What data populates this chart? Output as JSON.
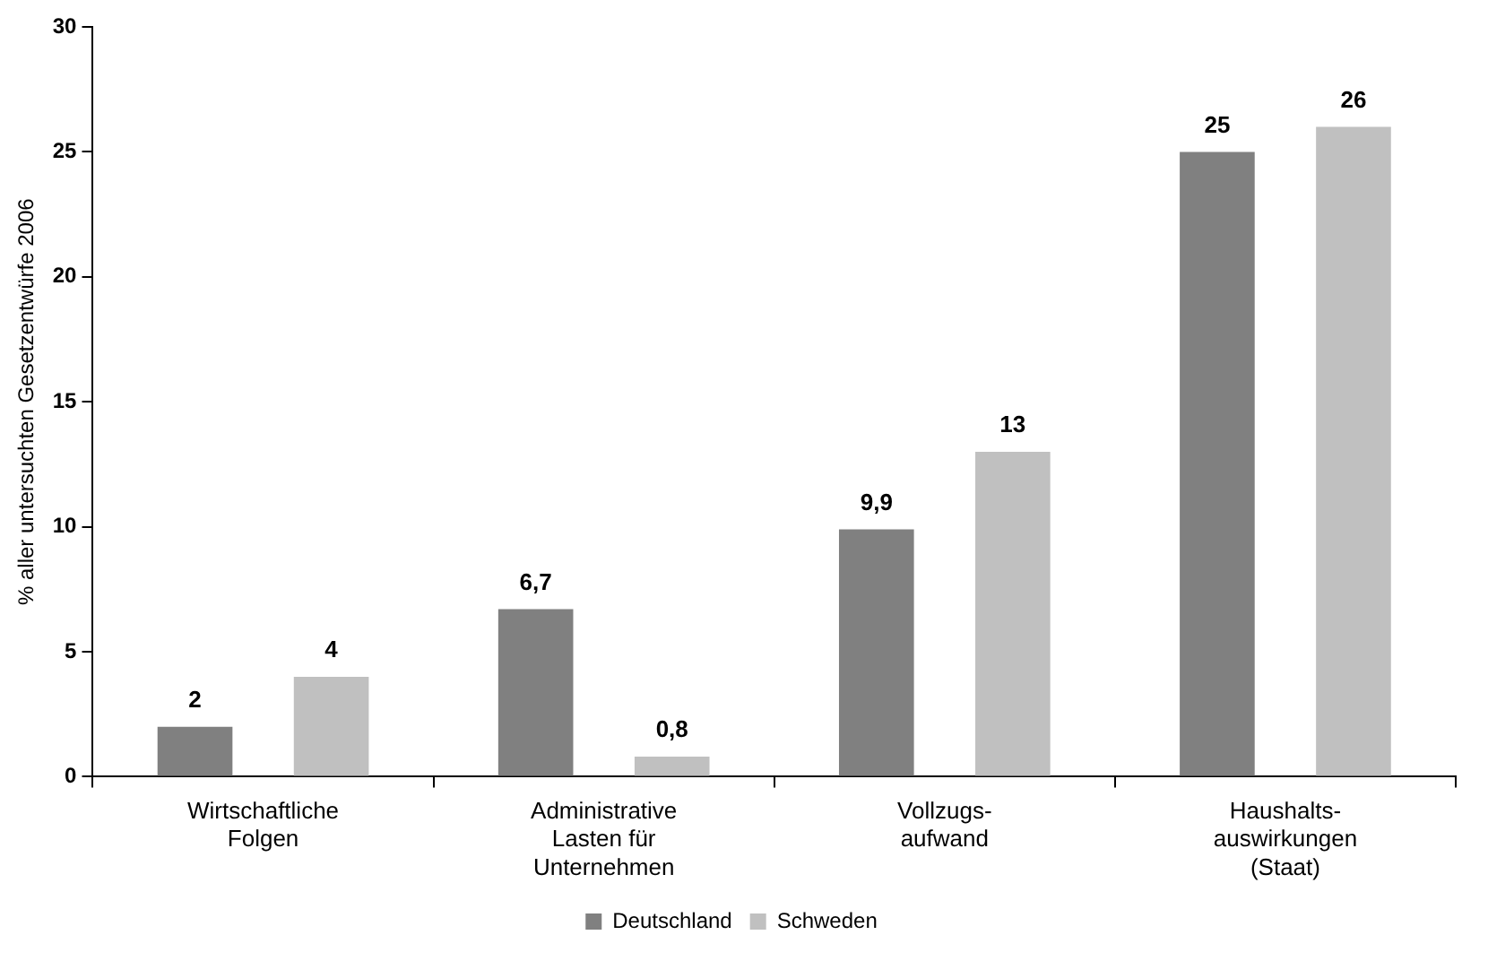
{
  "chart_data": {
    "type": "bar",
    "ylabel": "% aller untersuchten Gesetzentwürfe 2006",
    "categories": [
      "Wirtschaftliche\nFolgen",
      "Administrative\nLasten für\nUnternehmen",
      "Vollzugs-\naufwand",
      "Haushalts-\nauswirkungen\n(Staat)"
    ],
    "series": [
      {
        "name": "Deutschland",
        "color": "#808080",
        "values": [
          2,
          6.7,
          9.9,
          25
        ],
        "value_labels": [
          "2",
          "6,7",
          "9,9",
          "25"
        ]
      },
      {
        "name": "Schweden",
        "color": "#c0c0c0",
        "values": [
          4,
          0.8,
          13,
          26
        ],
        "value_labels": [
          "4",
          "0,8",
          "13",
          "26"
        ]
      }
    ],
    "ylim": [
      0,
      30
    ],
    "yticks": [
      0,
      5,
      10,
      15,
      20,
      25,
      30
    ],
    "legend": "bottom"
  }
}
